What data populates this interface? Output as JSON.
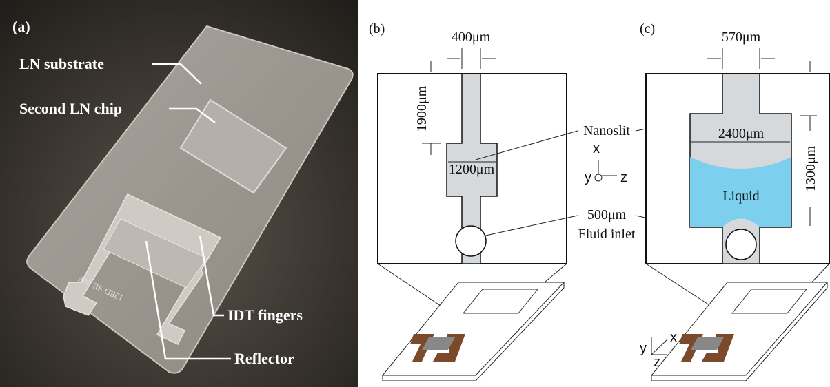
{
  "panel_a": {
    "label": "(a)",
    "chip_print": "128D SE 20F",
    "annotations": [
      "LN substrate",
      "Second LN chip",
      "IDT fingers",
      "Reflector"
    ]
  },
  "panel_b": {
    "label": "(b)",
    "width_top": "400μm",
    "length_top": "1900μm",
    "width_wide": "1200μm",
    "axes": [
      "x",
      "y",
      "z"
    ]
  },
  "panel_c": {
    "label": "(c)",
    "width_top": "570μm",
    "width_wide": "2400μm",
    "length_wide": "1300μm",
    "liquid": "Liquid",
    "axes": [
      "y",
      "x",
      "z"
    ]
  },
  "shared": {
    "nanoslit": "Nanoslit",
    "inlet_size": "500μm",
    "inlet": "Fluid inlet"
  }
}
